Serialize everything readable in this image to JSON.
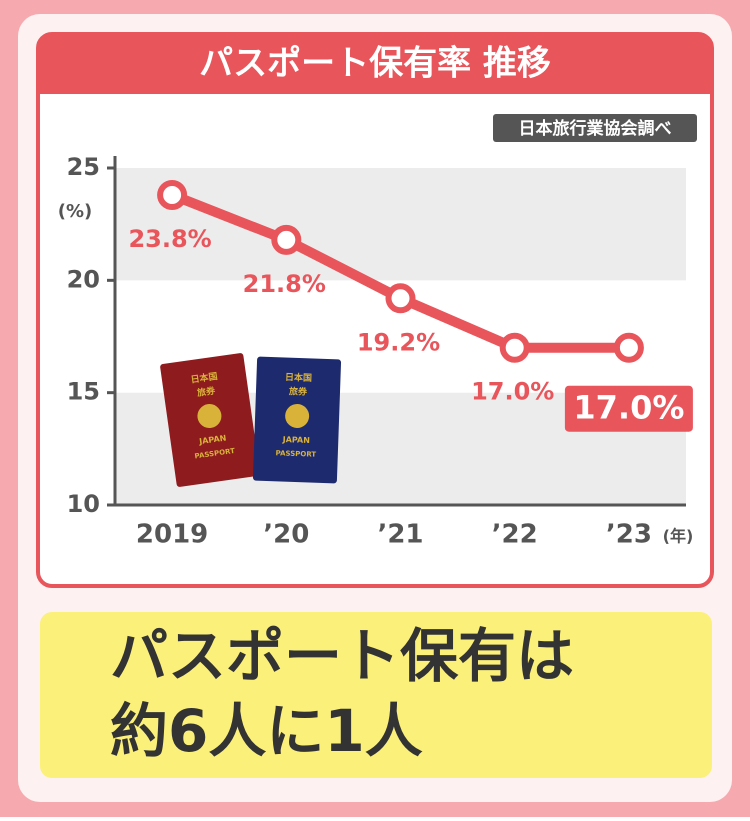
{
  "chart_data": {
    "type": "line",
    "title": "パスポート保有率 推移",
    "source": "日本旅行業協会調べ",
    "y_unit": "(%)",
    "x_unit": "(年)",
    "categories": [
      "2019",
      "’20",
      "’21",
      "’22",
      "’23"
    ],
    "values": [
      23.8,
      21.8,
      19.2,
      17.0,
      17.0
    ],
    "value_labels": [
      "23.8%",
      "21.8%",
      "19.2%",
      "17.0%",
      "17.0%"
    ],
    "color": "#e8555b",
    "ylim": [
      10,
      25
    ],
    "yticks": [
      10,
      15,
      20,
      25
    ],
    "grid": true
  },
  "passport": {
    "lines": [
      "日本国",
      "旅券",
      "JAPAN",
      "PASSPORT"
    ]
  },
  "caption": {
    "lines": [
      "パスポート保有は",
      "約6人に1人"
    ]
  }
}
